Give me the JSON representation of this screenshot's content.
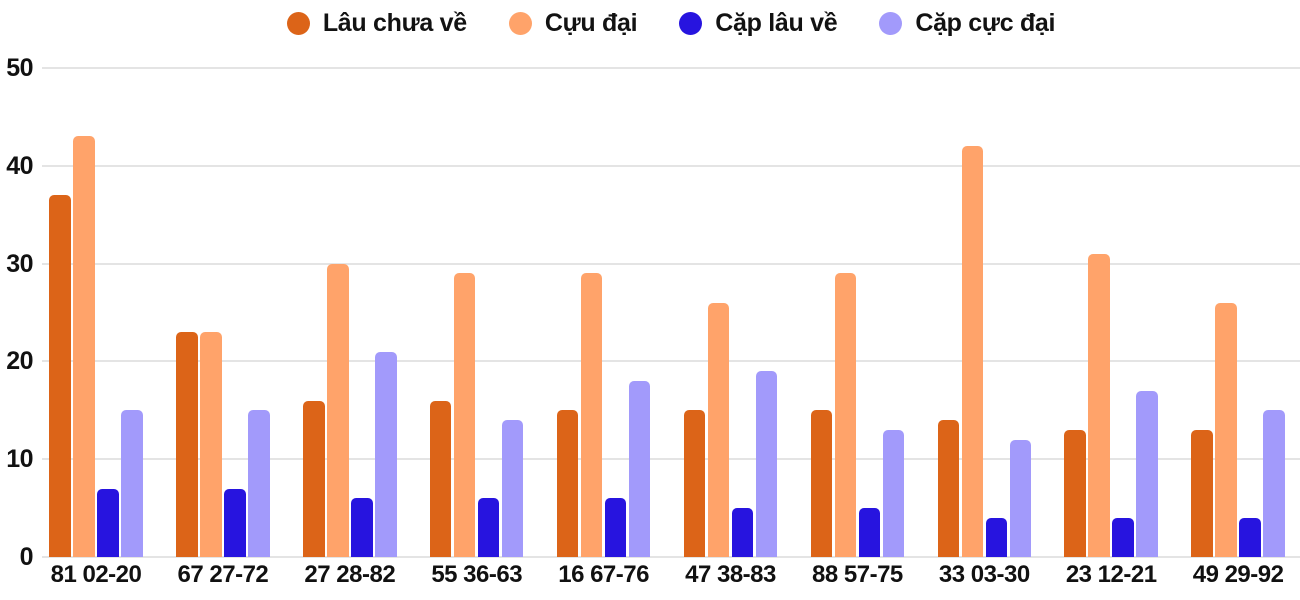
{
  "chart_data": {
    "type": "bar",
    "title": "",
    "xlabel": "",
    "ylabel": "",
    "categories": [
      "81 02-20",
      "67 27-72",
      "27 28-82",
      "55 36-63",
      "16 67-76",
      "47 38-83",
      "88 57-75",
      "33 03-30",
      "23 12-21",
      "49 29-92"
    ],
    "series": [
      {
        "name": "Lâu chưa về",
        "color": "#DC6418",
        "values": [
          37,
          23,
          16,
          16,
          15,
          15,
          15,
          14,
          13,
          13
        ]
      },
      {
        "name": "Cựu đại",
        "color": "#FFA36A",
        "values": [
          43,
          23,
          30,
          29,
          29,
          26,
          29,
          42,
          31,
          26
        ]
      },
      {
        "name": "Cặp lâu về",
        "color": "#2714DF",
        "values": [
          7,
          7,
          6,
          6,
          6,
          5,
          5,
          4,
          4,
          4
        ]
      },
      {
        "name": "Cặp cực đại",
        "color": "#A29AFB",
        "values": [
          15,
          15,
          21,
          14,
          18,
          19,
          13,
          12,
          17,
          15
        ]
      }
    ],
    "ylim": [
      0,
      50
    ],
    "yticks": [
      0,
      10,
      20,
      30,
      40,
      50
    ],
    "grid": true,
    "legend_position": "top"
  },
  "colors": {
    "background": "#FFFFFF",
    "gridline": "#E4E4E4",
    "axis_text": "#111111"
  }
}
